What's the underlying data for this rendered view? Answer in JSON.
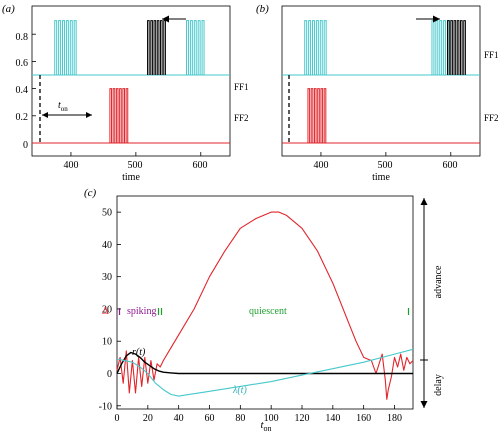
{
  "colors": {
    "cyan": "#46c8cc",
    "red": "#e0252b",
    "black": "#000000",
    "purple": "#8b1a8b",
    "green": "#1f9e2e"
  },
  "panel_a": {
    "label": "(a)",
    "xlabel": "time",
    "yticks": [
      "0",
      "0.2",
      "0.4",
      "0.6",
      "0.8"
    ],
    "xticks": [
      "400",
      "500",
      "600"
    ],
    "ff1_label": "FF1",
    "ff2_label": "FF2",
    "ton_label": "t",
    "ton_sub": "on"
  },
  "panel_b": {
    "label": "(b)",
    "xlabel": "time",
    "xticks": [
      "400",
      "500",
      "600"
    ],
    "ff1_label": "FF1",
    "ff2_label": "FF2"
  },
  "panel_c": {
    "label": "(c)",
    "delta": "Δ",
    "spiking": "spiking",
    "quiescent": "quiescent",
    "r_label": "r(t)",
    "lambda_label": "λ(t)",
    "advance": "advance",
    "delay": "delay",
    "xlabel": "t",
    "xlabel_sub": "on"
  },
  "chart_data": [
    {
      "type": "line",
      "title": "(a)",
      "xlabel": "time",
      "xlim": [
        340,
        645
      ],
      "ylim": [
        -0.05,
        1.0
      ],
      "xticks": [
        400,
        500,
        600
      ],
      "yticks": [
        0,
        0.2,
        0.4,
        0.6,
        0.8
      ],
      "series": [
        {
          "name": "FF1",
          "color": "cyan",
          "baseline": 0.5,
          "spike_top": 0.9,
          "bursts": [
            {
              "start": 375,
              "spikes": 6,
              "period": 6
            },
            {
              "start": 578,
              "spikes": 5,
              "period": 6
            }
          ]
        },
        {
          "name": "FF1",
          "color": "black",
          "baseline": 0.5,
          "spike_top": 0.9,
          "bursts": [
            {
              "start": 518,
              "spikes": 6,
              "period": 5
            }
          ]
        },
        {
          "name": "FF2",
          "color": "red",
          "baseline": 0.0,
          "spike_top": 0.4,
          "bursts": [
            {
              "start": 460,
              "spikes": 6,
              "period": 5
            }
          ]
        }
      ]
    },
    {
      "type": "line",
      "title": "(b)",
      "xlabel": "time",
      "xlim": [
        340,
        645
      ],
      "xticks": [
        400,
        500,
        600
      ],
      "series": [
        {
          "name": "FF1",
          "color": "cyan",
          "baseline": 0.5,
          "spike_top": 0.9,
          "bursts": [
            {
              "start": 375,
              "spikes": 6,
              "period": 6
            },
            {
              "start": 571,
              "spikes": 5,
              "period": 6
            }
          ]
        },
        {
          "name": "FF1",
          "color": "black",
          "baseline": 0.5,
          "spike_top": 0.9,
          "bursts": [
            {
              "start": 595,
              "spikes": 6,
              "period": 5
            }
          ]
        },
        {
          "name": "FF2",
          "color": "red",
          "baseline": 0.0,
          "spike_top": 0.4,
          "bursts": [
            {
              "start": 380,
              "spikes": 6,
              "period": 5
            }
          ]
        }
      ]
    },
    {
      "type": "line",
      "title": "(c)",
      "xlabel": "t_on",
      "xlim": [
        0,
        192
      ],
      "ylim": [
        -11,
        55
      ],
      "xticks": [
        0,
        20,
        40,
        60,
        80,
        100,
        120,
        140,
        160,
        180
      ],
      "yticks": [
        -10,
        0,
        10,
        20,
        30,
        40,
        50
      ],
      "series": [
        {
          "name": "Δ",
          "color": "red",
          "x": [
            0,
            2,
            4,
            6,
            8,
            10,
            12,
            14,
            16,
            18,
            20,
            22,
            24,
            26,
            28,
            30,
            35,
            40,
            50,
            60,
            70,
            80,
            90,
            100,
            105,
            110,
            120,
            130,
            140,
            150,
            155,
            160,
            165,
            168,
            170,
            172,
            174,
            175,
            176,
            178,
            180,
            182,
            184,
            186,
            188,
            190,
            192
          ],
          "y": [
            1,
            5,
            -3,
            7,
            -6,
            4,
            -6,
            5,
            -4,
            5,
            -3,
            4,
            -2,
            3,
            2,
            4,
            8,
            12,
            20,
            30,
            38,
            45,
            48,
            50,
            50,
            49,
            45,
            38,
            28,
            16,
            10,
            5,
            4,
            0,
            3,
            6,
            -2,
            -8,
            -5,
            -1,
            5,
            2,
            6,
            1,
            5,
            3,
            4
          ]
        },
        {
          "name": "r(t)",
          "color": "black",
          "x": [
            0,
            3,
            6,
            9,
            12,
            15,
            18,
            21,
            24,
            27,
            30,
            35,
            40,
            50,
            192
          ],
          "y": [
            0,
            3,
            5.5,
            6.5,
            6,
            5,
            3.5,
            2.5,
            1.5,
            0.8,
            0.4,
            0.2,
            0,
            0,
            0
          ]
        },
        {
          "name": "λ(t)",
          "color": "cyan",
          "x": [
            0,
            5,
            10,
            15,
            20,
            25,
            30,
            35,
            40,
            60,
            80,
            100,
            120,
            140,
            160,
            180,
            192
          ],
          "y": [
            4.5,
            4,
            3.5,
            2,
            0,
            -3,
            -5,
            -6.5,
            -7,
            -5.5,
            -4,
            -2.5,
            -0.5,
            1.5,
            3.5,
            6,
            7.5
          ]
        }
      ]
    }
  ]
}
